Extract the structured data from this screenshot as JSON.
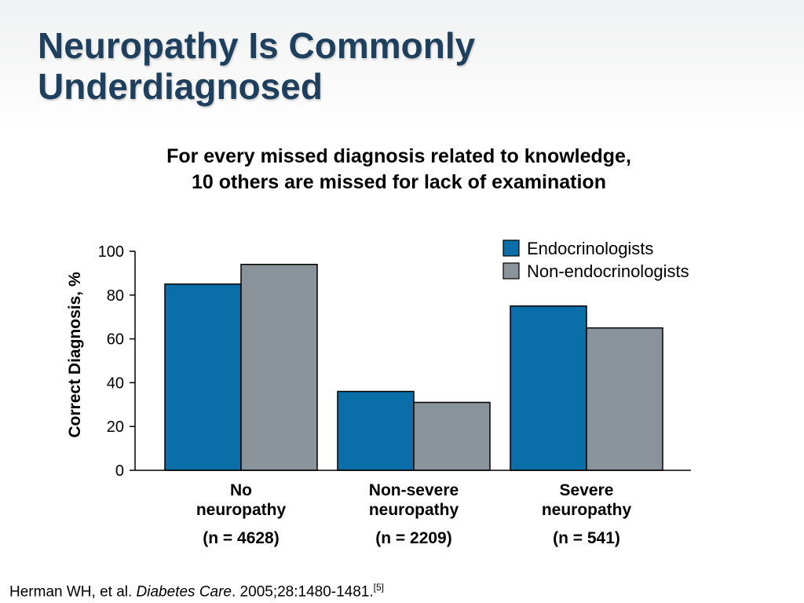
{
  "slide": {
    "title_lines": [
      "Neuropathy Is Commonly",
      "Underdiagnosed"
    ],
    "subtitle_lines": [
      "For every missed diagnosis related to knowledge,",
      "10 others are missed for lack of examination"
    ]
  },
  "chart_data": {
    "type": "bar",
    "categories": [
      "No neuropathy",
      "Non-severe neuropathy",
      "Severe neuropathy"
    ],
    "category_lines": [
      [
        "No",
        "neuropathy",
        "(n = 4628)"
      ],
      [
        "Non-severe",
        "neuropathy",
        "(n = 2209)"
      ],
      [
        "Severe",
        "neuropathy",
        "(n = 541)"
      ]
    ],
    "series": [
      {
        "name": "Endocrinologists",
        "values": [
          85,
          36,
          75
        ],
        "color": "#0a6fa8"
      },
      {
        "name": "Non-endocrinologists",
        "values": [
          94,
          31,
          65
        ],
        "color": "#8a9399"
      }
    ],
    "title": "",
    "xlabel": "",
    "ylabel": "Correct Diagnosis, %",
    "ylim": [
      0,
      100
    ],
    "yticks": [
      "0",
      "20",
      "40",
      "60",
      "80",
      "100"
    ],
    "grid": false,
    "legend_position": "top-right"
  },
  "citation": {
    "authors": "Herman  WH, et al. ",
    "journal": "Diabetes Care",
    "details": ". 2005;28:1480-1481.",
    "ref": "[5]"
  }
}
